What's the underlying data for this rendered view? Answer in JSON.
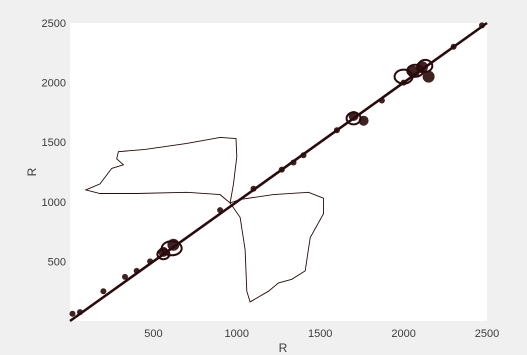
{
  "chart_data": {
    "type": "scatter",
    "title": "",
    "xlabel": "R",
    "ylabel": "R",
    "xlim": [
      0,
      2500
    ],
    "ylim": [
      0,
      2500
    ],
    "grid": false,
    "legend": "none",
    "x_ticks": [
      500,
      1000,
      1500,
      2000,
      2500
    ],
    "y_ticks": [
      500,
      1000,
      1500,
      2000,
      2500
    ],
    "colors": {
      "marks": "#2a0a0a",
      "plot_background": "#ffffff",
      "figure_background": "#f0f0f0",
      "tick_text": "#3c3c3c"
    },
    "series": [
      {
        "values": [
          {
            "x": 15,
            "y": 60
          },
          {
            "x": 60,
            "y": 75
          },
          {
            "x": 200,
            "y": 250
          },
          {
            "x": 330,
            "y": 370
          },
          {
            "x": 400,
            "y": 420
          },
          {
            "x": 480,
            "y": 500
          },
          {
            "x": 560,
            "y": 580
          },
          {
            "x": 620,
            "y": 640
          },
          {
            "x": 900,
            "y": 930
          },
          {
            "x": 1100,
            "y": 1110
          },
          {
            "x": 1270,
            "y": 1270
          },
          {
            "x": 1340,
            "y": 1330
          },
          {
            "x": 1400,
            "y": 1390
          },
          {
            "x": 1600,
            "y": 1600
          },
          {
            "x": 1700,
            "y": 1720
          },
          {
            "x": 1760,
            "y": 1680
          },
          {
            "x": 1870,
            "y": 1850
          },
          {
            "x": 2000,
            "y": 2000
          },
          {
            "x": 2060,
            "y": 2090
          },
          {
            "x": 2110,
            "y": 2130
          },
          {
            "x": 2150,
            "y": 2050
          },
          {
            "x": 2300,
            "y": 2300
          },
          {
            "x": 2470,
            "y": 2480
          }
        ]
      }
    ]
  }
}
